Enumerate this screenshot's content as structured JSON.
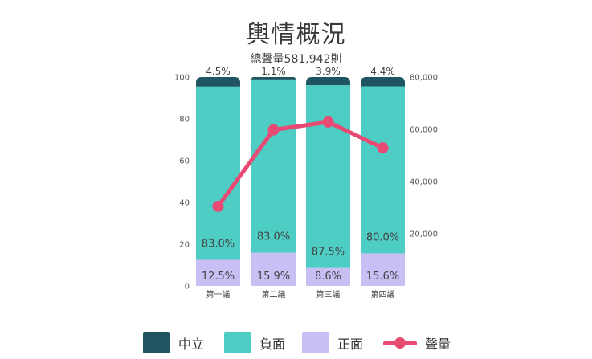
{
  "colors": {
    "neutral": "#1f5560",
    "negative": "#4ecdc4",
    "positive": "#c8bff5",
    "volume": "#e84a73"
  },
  "chart_data": {
    "type": "bar",
    "stacked": true,
    "title": "輿情概況",
    "subtitle": "總聲量581,942則",
    "categories": [
      "第一議",
      "第二議",
      "第三議",
      "第四議"
    ],
    "series": [
      {
        "name": "正面",
        "values": [
          12.5,
          15.9,
          8.6,
          15.6
        ],
        "labels": [
          "12.5%",
          "15.9%",
          "8.6%",
          "15.6%"
        ]
      },
      {
        "name": "負面",
        "values": [
          83.0,
          83.0,
          87.5,
          80.0
        ],
        "labels": [
          "83.0%",
          "83.0%",
          "87.5%",
          "80.0%"
        ]
      },
      {
        "name": "中立",
        "values": [
          4.5,
          1.1,
          3.9,
          4.4
        ],
        "labels": [
          "4.5%",
          "1.1%",
          "3.9%",
          "4.4%"
        ]
      }
    ],
    "line_series": {
      "name": "聲量",
      "values": [
        30500,
        59800,
        62800,
        52900
      ],
      "axis": "right"
    },
    "ylim_left": [
      0,
      100
    ],
    "yticks_left": [
      "0",
      "20",
      "40",
      "60",
      "80",
      "100"
    ],
    "ylim_right": [
      0,
      80000
    ],
    "yticks_right": [
      {
        "value": 20000,
        "label": "20,000"
      },
      {
        "value": 40000,
        "label": "40,000"
      },
      {
        "value": 60000,
        "label": "60,000"
      },
      {
        "value": 80000,
        "label": "80,000"
      }
    ],
    "legend": {
      "placement": "bottom",
      "items": [
        "中立",
        "負面",
        "正面",
        "聲量"
      ]
    }
  }
}
